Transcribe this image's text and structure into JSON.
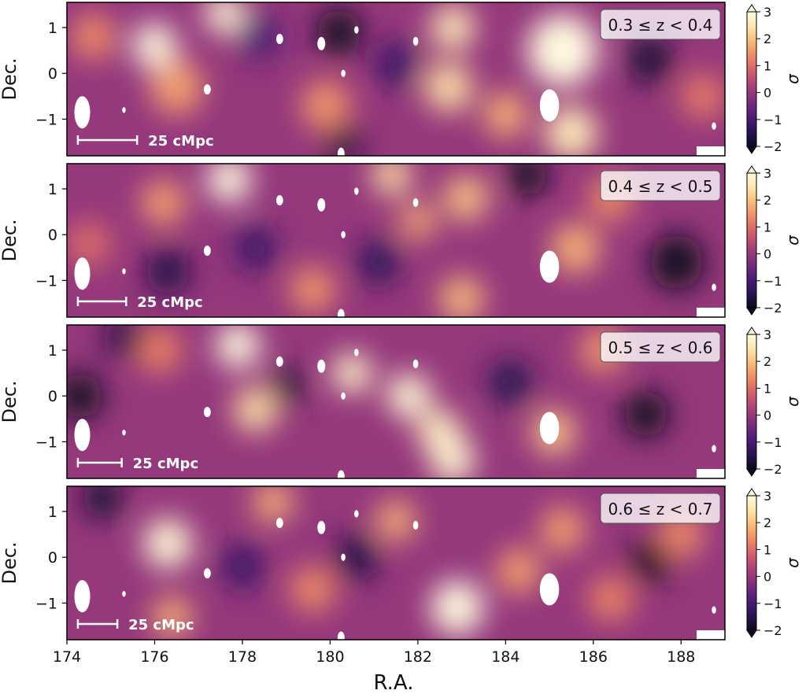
{
  "figure": {
    "xlabel": "R.A.",
    "xticks": [
      174,
      176,
      178,
      180,
      182,
      184,
      186,
      188
    ],
    "xlim": [
      174,
      189
    ],
    "colormap_colors": [
      "#0d0a1f",
      "#2a1356",
      "#4f1c78",
      "#7a2c7e",
      "#a7407a",
      "#d15d6c",
      "#ee8764",
      "#f8b878",
      "#fce5a8",
      "#fffbe0"
    ],
    "mask_color": "#ffffff"
  },
  "chart_data": [
    {
      "type": "heatmap",
      "panel_label": "0.3 ≤ z < 0.4",
      "ylabel": "Dec.",
      "ylim": [
        -1.8,
        1.55
      ],
      "yticks": [
        1,
        0,
        -1
      ],
      "colorbar": {
        "label": "σ",
        "ticks": [
          3,
          2,
          1,
          0,
          -1,
          -2
        ],
        "range": [
          -2,
          3
        ]
      },
      "scale_bar_label": "25 cMpc",
      "scale_bar_ra": [
        174.25,
        175.6
      ],
      "overdensities": [
        {
          "ra": 176.0,
          "dec": 0.6,
          "sigma": 3.2,
          "r": 0.5
        },
        {
          "ra": 177.6,
          "dec": 1.3,
          "sigma": 2.8,
          "r": 0.45
        },
        {
          "ra": 176.5,
          "dec": -0.3,
          "sigma": 1.6,
          "r": 0.6
        },
        {
          "ra": 182.8,
          "dec": 1.0,
          "sigma": 2.4,
          "r": 0.5
        },
        {
          "ra": 182.7,
          "dec": -0.3,
          "sigma": 2.2,
          "r": 0.55
        },
        {
          "ra": 185.3,
          "dec": 0.5,
          "sigma": 3.3,
          "r": 0.8
        },
        {
          "ra": 185.5,
          "dec": -1.3,
          "sigma": 2.4,
          "r": 0.6
        },
        {
          "ra": 184.0,
          "dec": -0.9,
          "sigma": 1.8,
          "r": 0.5
        },
        {
          "ra": 179.9,
          "dec": -0.7,
          "sigma": 1.5,
          "r": 0.55
        },
        {
          "ra": 174.6,
          "dec": 0.8,
          "sigma": 1.4,
          "r": 0.5
        },
        {
          "ra": 188.5,
          "dec": -0.5,
          "sigma": 1.2,
          "r": 0.5
        },
        {
          "ra": 180.3,
          "dec": -1.5,
          "sigma": -1.8,
          "r": 0.4
        },
        {
          "ra": 180.2,
          "dec": 0.9,
          "sigma": -2.0,
          "r": 0.5
        },
        {
          "ra": 187.3,
          "dec": 0.3,
          "sigma": -1.8,
          "r": 0.5
        },
        {
          "ra": 181.5,
          "dec": 0.2,
          "sigma": -1.2,
          "r": 0.5
        },
        {
          "ra": 178.4,
          "dec": 0.8,
          "sigma": -1.0,
          "r": 0.5
        }
      ]
    },
    {
      "type": "heatmap",
      "panel_label": "0.4 ≤ z < 0.5",
      "ylabel": "Dec.",
      "ylim": [
        -1.8,
        1.55
      ],
      "yticks": [
        1,
        0,
        -1
      ],
      "colorbar": {
        "label": "σ",
        "ticks": [
          3,
          2,
          1,
          0,
          -1,
          -2
        ],
        "range": [
          -2,
          3
        ]
      },
      "scale_bar_label": "25 cMpc",
      "scale_bar_ra": [
        174.25,
        175.35
      ],
      "overdensities": [
        {
          "ra": 177.7,
          "dec": 1.2,
          "sigma": 3.0,
          "r": 0.5
        },
        {
          "ra": 176.2,
          "dec": 0.7,
          "sigma": 1.6,
          "r": 0.5
        },
        {
          "ra": 181.4,
          "dec": 1.3,
          "sigma": 2.2,
          "r": 0.45
        },
        {
          "ra": 183.1,
          "dec": 0.8,
          "sigma": 2.0,
          "r": 0.5
        },
        {
          "ra": 182.0,
          "dec": 0.3,
          "sigma": 1.8,
          "r": 0.4
        },
        {
          "ra": 185.6,
          "dec": -0.3,
          "sigma": 1.8,
          "r": 0.55
        },
        {
          "ra": 183.0,
          "dec": -1.4,
          "sigma": 1.9,
          "r": 0.5
        },
        {
          "ra": 179.6,
          "dec": -1.2,
          "sigma": 1.5,
          "r": 0.5
        },
        {
          "ra": 186.4,
          "dec": 0.8,
          "sigma": 1.4,
          "r": 0.5
        },
        {
          "ra": 174.5,
          "dec": -0.2,
          "sigma": 1.0,
          "r": 0.5
        },
        {
          "ra": 184.5,
          "dec": 1.3,
          "sigma": -2.0,
          "r": 0.45
        },
        {
          "ra": 187.9,
          "dec": -0.6,
          "sigma": -2.2,
          "r": 0.6
        },
        {
          "ra": 176.3,
          "dec": -0.8,
          "sigma": -1.6,
          "r": 0.5
        },
        {
          "ra": 178.3,
          "dec": -0.3,
          "sigma": -1.2,
          "r": 0.5
        },
        {
          "ra": 181.1,
          "dec": -0.6,
          "sigma": -1.4,
          "r": 0.5
        }
      ]
    },
    {
      "type": "heatmap",
      "panel_label": "0.5 ≤ z < 0.6",
      "ylabel": "Dec.",
      "ylim": [
        -1.8,
        1.55
      ],
      "yticks": [
        1,
        0,
        -1
      ],
      "colorbar": {
        "label": "σ",
        "ticks": [
          3,
          2,
          1,
          0,
          -1,
          -2
        ],
        "range": [
          -2,
          3
        ]
      },
      "scale_bar_label": "25 cMpc",
      "scale_bar_ra": [
        174.25,
        175.25
      ],
      "overdensities": [
        {
          "ra": 177.9,
          "dec": 1.1,
          "sigma": 3.0,
          "r": 0.5
        },
        {
          "ra": 180.5,
          "dec": 0.5,
          "sigma": 2.6,
          "r": 0.45
        },
        {
          "ra": 181.8,
          "dec": 0.0,
          "sigma": 2.8,
          "r": 0.5
        },
        {
          "ra": 182.5,
          "dec": -0.8,
          "sigma": 2.5,
          "r": 0.5
        },
        {
          "ra": 182.8,
          "dec": -1.4,
          "sigma": 2.7,
          "r": 0.5
        },
        {
          "ra": 178.3,
          "dec": -0.3,
          "sigma": 2.2,
          "r": 0.5
        },
        {
          "ra": 176.1,
          "dec": 1.0,
          "sigma": 1.3,
          "r": 0.5
        },
        {
          "ra": 185.1,
          "dec": -0.8,
          "sigma": 2.0,
          "r": 0.5
        },
        {
          "ra": 186.2,
          "dec": 1.0,
          "sigma": 1.5,
          "r": 0.5
        },
        {
          "ra": 174.3,
          "dec": 0.0,
          "sigma": -2.2,
          "r": 0.5
        },
        {
          "ra": 187.2,
          "dec": -0.4,
          "sigma": -2.0,
          "r": 0.5
        },
        {
          "ra": 175.3,
          "dec": 1.3,
          "sigma": -1.6,
          "r": 0.45
        },
        {
          "ra": 179.0,
          "dec": 0.2,
          "sigma": -1.8,
          "r": 0.4
        },
        {
          "ra": 184.1,
          "dec": 0.3,
          "sigma": -1.5,
          "r": 0.5
        }
      ]
    },
    {
      "type": "heatmap",
      "panel_label": "0.6 ≤ z < 0.7",
      "ylabel": "Dec.",
      "ylim": [
        -1.8,
        1.55
      ],
      "yticks": [
        1,
        0,
        -1
      ],
      "colorbar": {
        "label": "σ",
        "ticks": [
          3,
          2,
          1,
          0,
          -1,
          -2
        ],
        "range": [
          -2,
          3
        ]
      },
      "scale_bar_label": "25 cMpc",
      "scale_bar_ra": [
        174.25,
        175.15
      ],
      "overdensities": [
        {
          "ra": 176.3,
          "dec": 0.3,
          "sigma": 2.8,
          "r": 0.55
        },
        {
          "ra": 178.7,
          "dec": 1.2,
          "sigma": 1.8,
          "r": 0.45
        },
        {
          "ra": 182.9,
          "dec": -1.1,
          "sigma": 3.3,
          "r": 0.6
        },
        {
          "ra": 181.5,
          "dec": 0.8,
          "sigma": 1.8,
          "r": 0.45
        },
        {
          "ra": 185.3,
          "dec": 0.6,
          "sigma": 1.6,
          "r": 0.5
        },
        {
          "ra": 184.3,
          "dec": -0.3,
          "sigma": 1.6,
          "r": 0.5
        },
        {
          "ra": 176.4,
          "dec": -1.3,
          "sigma": 1.8,
          "r": 0.45
        },
        {
          "ra": 179.6,
          "dec": -0.7,
          "sigma": 1.4,
          "r": 0.5
        },
        {
          "ra": 186.4,
          "dec": -0.9,
          "sigma": 1.3,
          "r": 0.5
        },
        {
          "ra": 188.0,
          "dec": 0.5,
          "sigma": 1.4,
          "r": 0.5
        },
        {
          "ra": 187.3,
          "dec": -0.1,
          "sigma": -2.3,
          "r": 0.45
        },
        {
          "ra": 174.8,
          "dec": 1.3,
          "sigma": -1.8,
          "r": 0.45
        },
        {
          "ra": 180.6,
          "dec": 0.0,
          "sigma": -1.6,
          "r": 0.5
        },
        {
          "ra": 178.0,
          "dec": -0.2,
          "sigma": -1.2,
          "r": 0.5
        }
      ]
    }
  ]
}
